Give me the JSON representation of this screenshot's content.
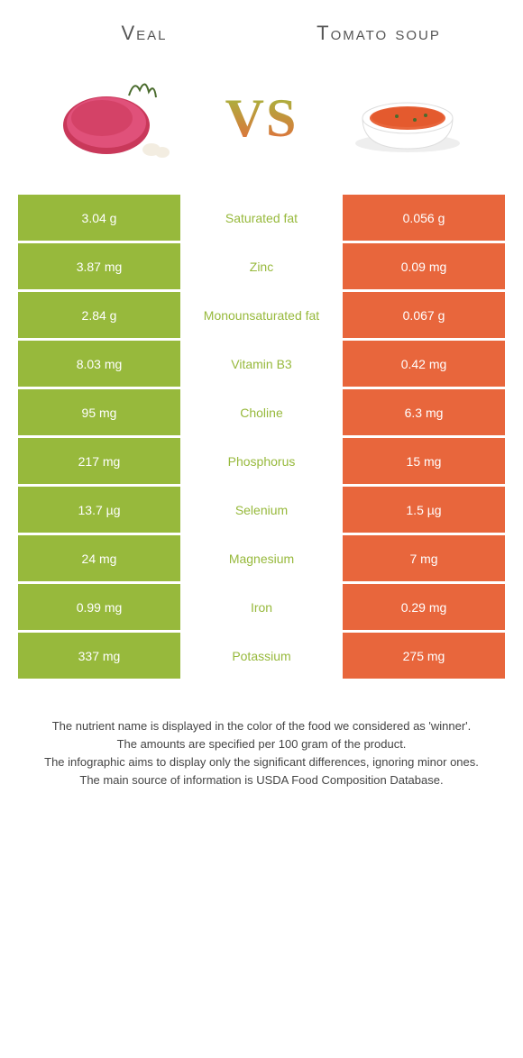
{
  "colors": {
    "left": "#97b93c",
    "right": "#e8663c",
    "left_text_on_white": "#97b93c",
    "right_text_on_white": "#e8663c",
    "page_bg": "#ffffff"
  },
  "header": {
    "left_title": "Veal",
    "right_title": "Tomato soup",
    "vs_label": "VS"
  },
  "nutrients": [
    {
      "label": "Saturated fat",
      "left": "3.04 g",
      "right": "0.056 g",
      "winner": "left"
    },
    {
      "label": "Zinc",
      "left": "3.87 mg",
      "right": "0.09 mg",
      "winner": "left"
    },
    {
      "label": "Monounsaturated fat",
      "left": "2.84 g",
      "right": "0.067 g",
      "winner": "left"
    },
    {
      "label": "Vitamin B3",
      "left": "8.03 mg",
      "right": "0.42 mg",
      "winner": "left"
    },
    {
      "label": "Choline",
      "left": "95 mg",
      "right": "6.3 mg",
      "winner": "left"
    },
    {
      "label": "Phosphorus",
      "left": "217 mg",
      "right": "15 mg",
      "winner": "left"
    },
    {
      "label": "Selenium",
      "left": "13.7 µg",
      "right": "1.5 µg",
      "winner": "left"
    },
    {
      "label": "Magnesium",
      "left": "24 mg",
      "right": "7 mg",
      "winner": "left"
    },
    {
      "label": "Iron",
      "left": "0.99 mg",
      "right": "0.29 mg",
      "winner": "left"
    },
    {
      "label": "Potassium",
      "left": "337 mg",
      "right": "275 mg",
      "winner": "left"
    }
  ],
  "footer_lines": [
    "The nutrient name is displayed in the color of the food we considered as 'winner'.",
    "The amounts are specified per 100 gram of the product.",
    "The infographic aims to display only the significant differences, ignoring minor ones.",
    "The main source of information is USDA Food Composition Database."
  ]
}
